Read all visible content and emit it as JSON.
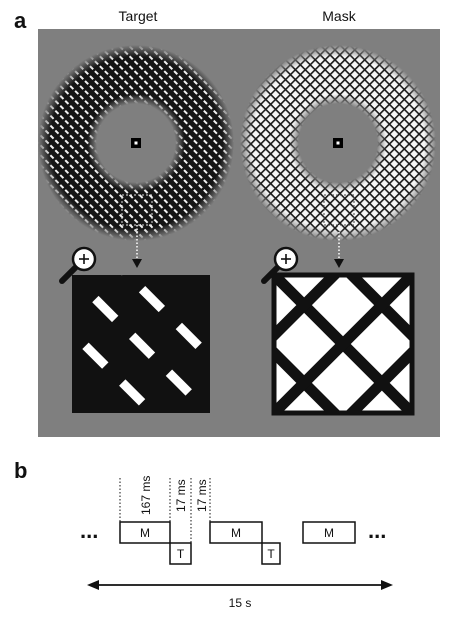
{
  "panel_a": {
    "letter": "a",
    "columns": [
      {
        "title": "Target"
      },
      {
        "title": "Mask"
      }
    ]
  },
  "panel_b": {
    "letter": "b",
    "timing": {
      "d1": "167 ms",
      "d2": "17 ms",
      "d3": "17 ms",
      "total": "15 s"
    },
    "boxes": {
      "mask": "M",
      "target": "T"
    },
    "ellipsis": "..."
  },
  "colors": {
    "background_gray": "#7f7f7f",
    "ink": "#111111",
    "white": "#ffffff"
  }
}
